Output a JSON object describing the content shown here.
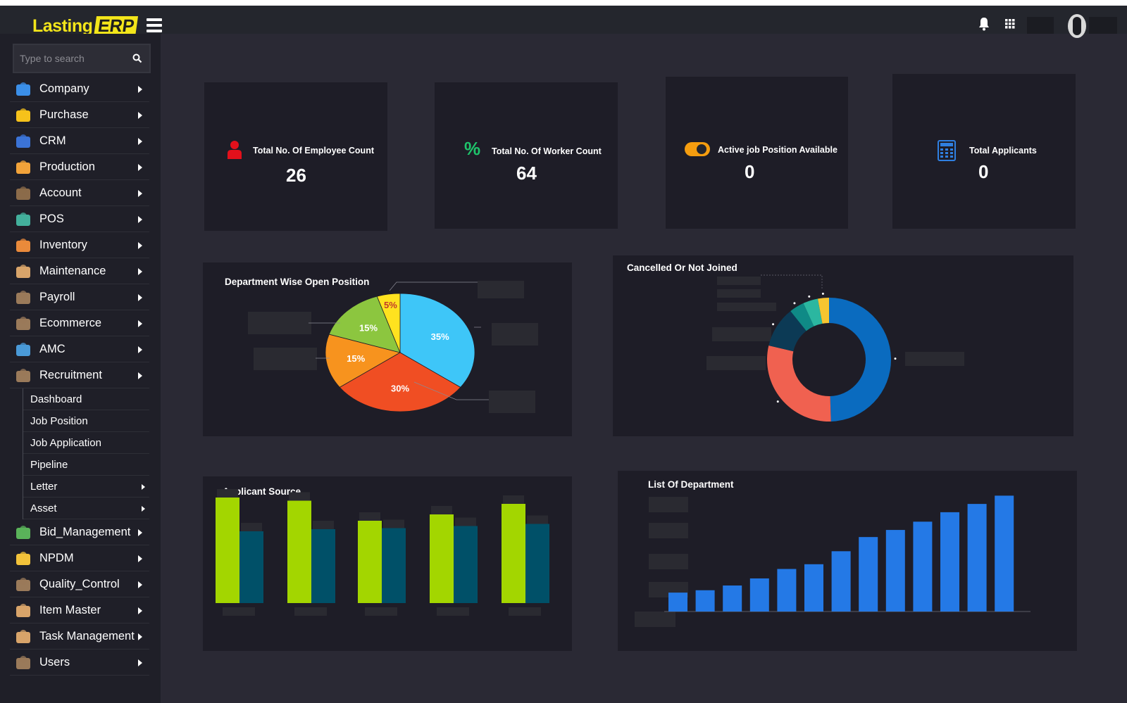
{
  "app": {
    "logo_main": "Lasting",
    "logo_badge": "ERP"
  },
  "header": {
    "icons": [
      "bell-icon",
      "apps-grid-icon",
      "user-avatar"
    ]
  },
  "search": {
    "placeholder": "Type to search"
  },
  "sidebar": {
    "items": [
      {
        "label": "Company",
        "icon": "buildings-icon",
        "color": "#3b8fe8"
      },
      {
        "label": "Purchase",
        "icon": "shopping-bag-icon",
        "color": "#f6c21b"
      },
      {
        "label": "CRM",
        "icon": "people-network-icon",
        "color": "#3b73d6"
      },
      {
        "label": "Production",
        "icon": "box-icon",
        "color": "#f2a33a"
      },
      {
        "label": "Account",
        "icon": "accountant-icon",
        "color": "#8b6b4a"
      },
      {
        "label": "POS",
        "icon": "pos-icon",
        "color": "#43b09c"
      },
      {
        "label": "Inventory",
        "icon": "warehouse-icon",
        "color": "#e98a3b"
      },
      {
        "label": "Maintenance",
        "icon": "gear-face-icon",
        "color": "#d8a46a"
      },
      {
        "label": "Payroll",
        "icon": "team-icon",
        "color": "#9a7a5a"
      },
      {
        "label": "Ecommerce",
        "icon": "team-icon",
        "color": "#9a7a5a"
      },
      {
        "label": "AMC",
        "icon": "tools-icon",
        "color": "#4a9ad8"
      },
      {
        "label": "Recruitment",
        "icon": "team-icon",
        "color": "#9a7a5a"
      }
    ],
    "recruitment_sub": [
      {
        "label": "Dashboard",
        "has_arrow": false
      },
      {
        "label": "Job Position",
        "has_arrow": false
      },
      {
        "label": "Job Application",
        "has_arrow": false
      },
      {
        "label": "Pipeline",
        "has_arrow": false
      },
      {
        "label": "Letter",
        "has_arrow": true
      },
      {
        "label": "Asset",
        "has_arrow": true
      }
    ],
    "items_after": [
      {
        "label": "Bid_Management",
        "icon": "laptop-icon",
        "color": "#5ab35a"
      },
      {
        "label": "NPDM",
        "icon": "lightbulb-gear-icon",
        "color": "#f2c23a"
      },
      {
        "label": "Quality_Control",
        "icon": "quality-icon",
        "color": "#9a7a5a"
      },
      {
        "label": "Item Master",
        "icon": "gear-face-icon",
        "color": "#d8a46a"
      },
      {
        "label": "Task Management",
        "icon": "gear-face-icon",
        "color": "#d8a46a"
      },
      {
        "label": "Users",
        "icon": "team-icon",
        "color": "#9a7a5a"
      }
    ]
  },
  "stats": [
    {
      "title": "Total No. Of Employee Count",
      "value": "26",
      "icon": "user-icon",
      "color": "#e3101b"
    },
    {
      "title": "Total No. Of Worker Count",
      "value": "64",
      "icon": "percent-icon",
      "color": "#1ec46b"
    },
    {
      "title": "Active job Position Available",
      "value": "0",
      "icon": "toggle-icon",
      "color": "#f59d0f"
    },
    {
      "title": "Total Applicants",
      "value": "0",
      "icon": "calculator-icon",
      "color": "#2f7fe0"
    }
  ],
  "charts": {
    "dept_open": {
      "title": "Department Wise Open Position"
    },
    "cancelled": {
      "title": "Cancelled Or Not Joined"
    },
    "source": {
      "title": "Applicant Source"
    },
    "dept_list": {
      "title": "List Of Department"
    }
  },
  "chart_data": [
    {
      "type": "pie",
      "title": "Department Wise Open Position",
      "slices": [
        {
          "value": 35,
          "label": "35%",
          "color": "#3ec6f8"
        },
        {
          "value": 30,
          "label": "30%",
          "color": "#f04e23"
        },
        {
          "value": 15,
          "label": "15%",
          "color": "#f7931e"
        },
        {
          "value": 15,
          "label": "15%",
          "color": "#8cc63f"
        },
        {
          "value": 5,
          "label": "5%",
          "color": "#ffe21f"
        }
      ]
    },
    {
      "type": "pie",
      "title": "Cancelled Or Not Joined",
      "donut": true,
      "slices": [
        {
          "value": 51,
          "color": "#0a6bbf"
        },
        {
          "value": 30,
          "color": "#f06150"
        },
        {
          "value": 11,
          "color": "#0c3a55"
        },
        {
          "value": 4,
          "color": "#0f8a86"
        },
        {
          "value": 4,
          "color": "#2bb7a0"
        },
        {
          "value": 3,
          "color": "#f7c530"
        }
      ]
    },
    {
      "type": "bar",
      "title": "Applicant Source",
      "series": [
        {
          "values": [
            100,
            97,
            78,
            84,
            94
          ],
          "color": "#a3d600"
        },
        {
          "values": [
            68,
            70,
            71,
            73,
            75
          ],
          "color": "#005068"
        }
      ]
    },
    {
      "type": "bar",
      "title": "List Of Department",
      "values": [
        16,
        18,
        22,
        28,
        36,
        40,
        51,
        63,
        69,
        76,
        84,
        91,
        98
      ],
      "color": "#2479e6"
    }
  ]
}
